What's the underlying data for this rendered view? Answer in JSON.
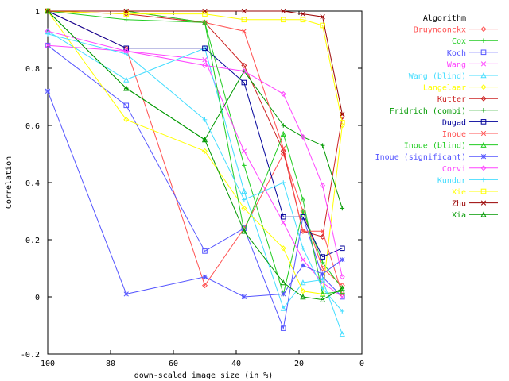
{
  "chart_data": {
    "type": "line",
    "xlabel": "down-scaled image size (in %)",
    "ylabel": "Correlation",
    "xlim": [
      100,
      0
    ],
    "ylim": [
      -0.2,
      1
    ],
    "x_ticks": [
      100,
      80,
      60,
      40,
      20,
      0
    ],
    "y_ticks": [
      -0.2,
      0,
      0.2,
      0.4,
      0.6,
      0.8,
      1
    ],
    "x": [
      100,
      75,
      50,
      37.5,
      25,
      18.75,
      12.5,
      6.25
    ],
    "legend": {
      "title": "Algorithm",
      "placement": "right-outside"
    },
    "series": [
      {
        "name": "Bruyndonckx",
        "color": "#ff5050",
        "marker": "diamond",
        "values": [
          1.0,
          0.87,
          0.04,
          0.24,
          0.5,
          0.3,
          0.1,
          0.04
        ]
      },
      {
        "name": "Cox",
        "color": "#22cc22",
        "marker": "plus",
        "values": [
          1.0,
          0.97,
          0.96,
          0.46,
          0.01,
          0.3,
          0.12,
          0.03
        ]
      },
      {
        "name": "Koch",
        "color": "#5555ff",
        "marker": "square",
        "values": [
          0.88,
          0.67,
          0.16,
          0.24,
          -0.11,
          0.28,
          0.07,
          0.0
        ]
      },
      {
        "name": "Wang",
        "color": "#ff44ff",
        "marker": "x",
        "values": [
          0.88,
          0.86,
          0.83,
          0.51,
          0.26,
          0.13,
          0.05,
          0.0
        ]
      },
      {
        "name": "Wang (blind)",
        "color": "#44ddff",
        "marker": "triangle",
        "values": [
          0.93,
          0.76,
          0.87,
          0.37,
          -0.04,
          0.05,
          0.06,
          -0.13
        ]
      },
      {
        "name": "Langelaar",
        "color": "#ffff00",
        "marker": "diamond",
        "values": [
          1.0,
          0.62,
          0.51,
          0.31,
          0.17,
          0.02,
          0.01,
          0.6
        ]
      },
      {
        "name": "Kutter",
        "color": "#cc2222",
        "marker": "diamond",
        "values": [
          1.0,
          0.99,
          0.96,
          0.81,
          0.51,
          0.23,
          0.21,
          0.63
        ]
      },
      {
        "name": "Fridrich (combi)",
        "color": "#009900",
        "marker": "plus",
        "values": [
          1.0,
          0.73,
          0.55,
          0.79,
          0.6,
          0.56,
          0.53,
          0.31
        ]
      },
      {
        "name": "Dugad",
        "color": "#000099",
        "marker": "square",
        "values": [
          1.0,
          0.87,
          0.87,
          0.75,
          0.28,
          0.28,
          0.14,
          0.17
        ]
      },
      {
        "name": "Inoue",
        "color": "#ff5050",
        "marker": "x",
        "values": [
          1.0,
          1.0,
          0.96,
          0.93,
          0.52,
          0.23,
          0.23,
          0.01
        ]
      },
      {
        "name": "Inoue (blind)",
        "color": "#22cc22",
        "marker": "triangle",
        "values": [
          1.0,
          1.0,
          0.96,
          0.23,
          0.57,
          0.34,
          0.01,
          0.02
        ]
      },
      {
        "name": "Inoue (significant)",
        "color": "#5555ff",
        "marker": "star",
        "values": [
          0.72,
          0.01,
          0.07,
          0.0,
          0.01,
          0.11,
          0.08,
          0.13
        ]
      },
      {
        "name": "Corvi",
        "color": "#ff44ff",
        "marker": "diamond",
        "values": [
          0.93,
          0.86,
          0.81,
          0.79,
          0.71,
          0.56,
          0.39,
          0.07
        ]
      },
      {
        "name": "Kundur",
        "color": "#44ddff",
        "marker": "plus",
        "values": [
          0.92,
          0.85,
          0.62,
          0.34,
          0.4,
          0.17,
          0.03,
          -0.05
        ]
      },
      {
        "name": "Xie",
        "color": "#ffff00",
        "marker": "square",
        "values": [
          1.0,
          0.99,
          0.99,
          0.97,
          0.97,
          0.97,
          0.95,
          0.61
        ]
      },
      {
        "name": "Zhu",
        "color": "#990000",
        "marker": "x",
        "values": [
          1.0,
          1.0,
          1.0,
          1.0,
          1.0,
          0.99,
          0.98,
          0.64
        ]
      },
      {
        "name": "Xia",
        "color": "#009900",
        "marker": "triangle",
        "values": [
          1.0,
          0.73,
          0.55,
          0.23,
          0.05,
          0.0,
          -0.01,
          0.03
        ]
      }
    ]
  }
}
